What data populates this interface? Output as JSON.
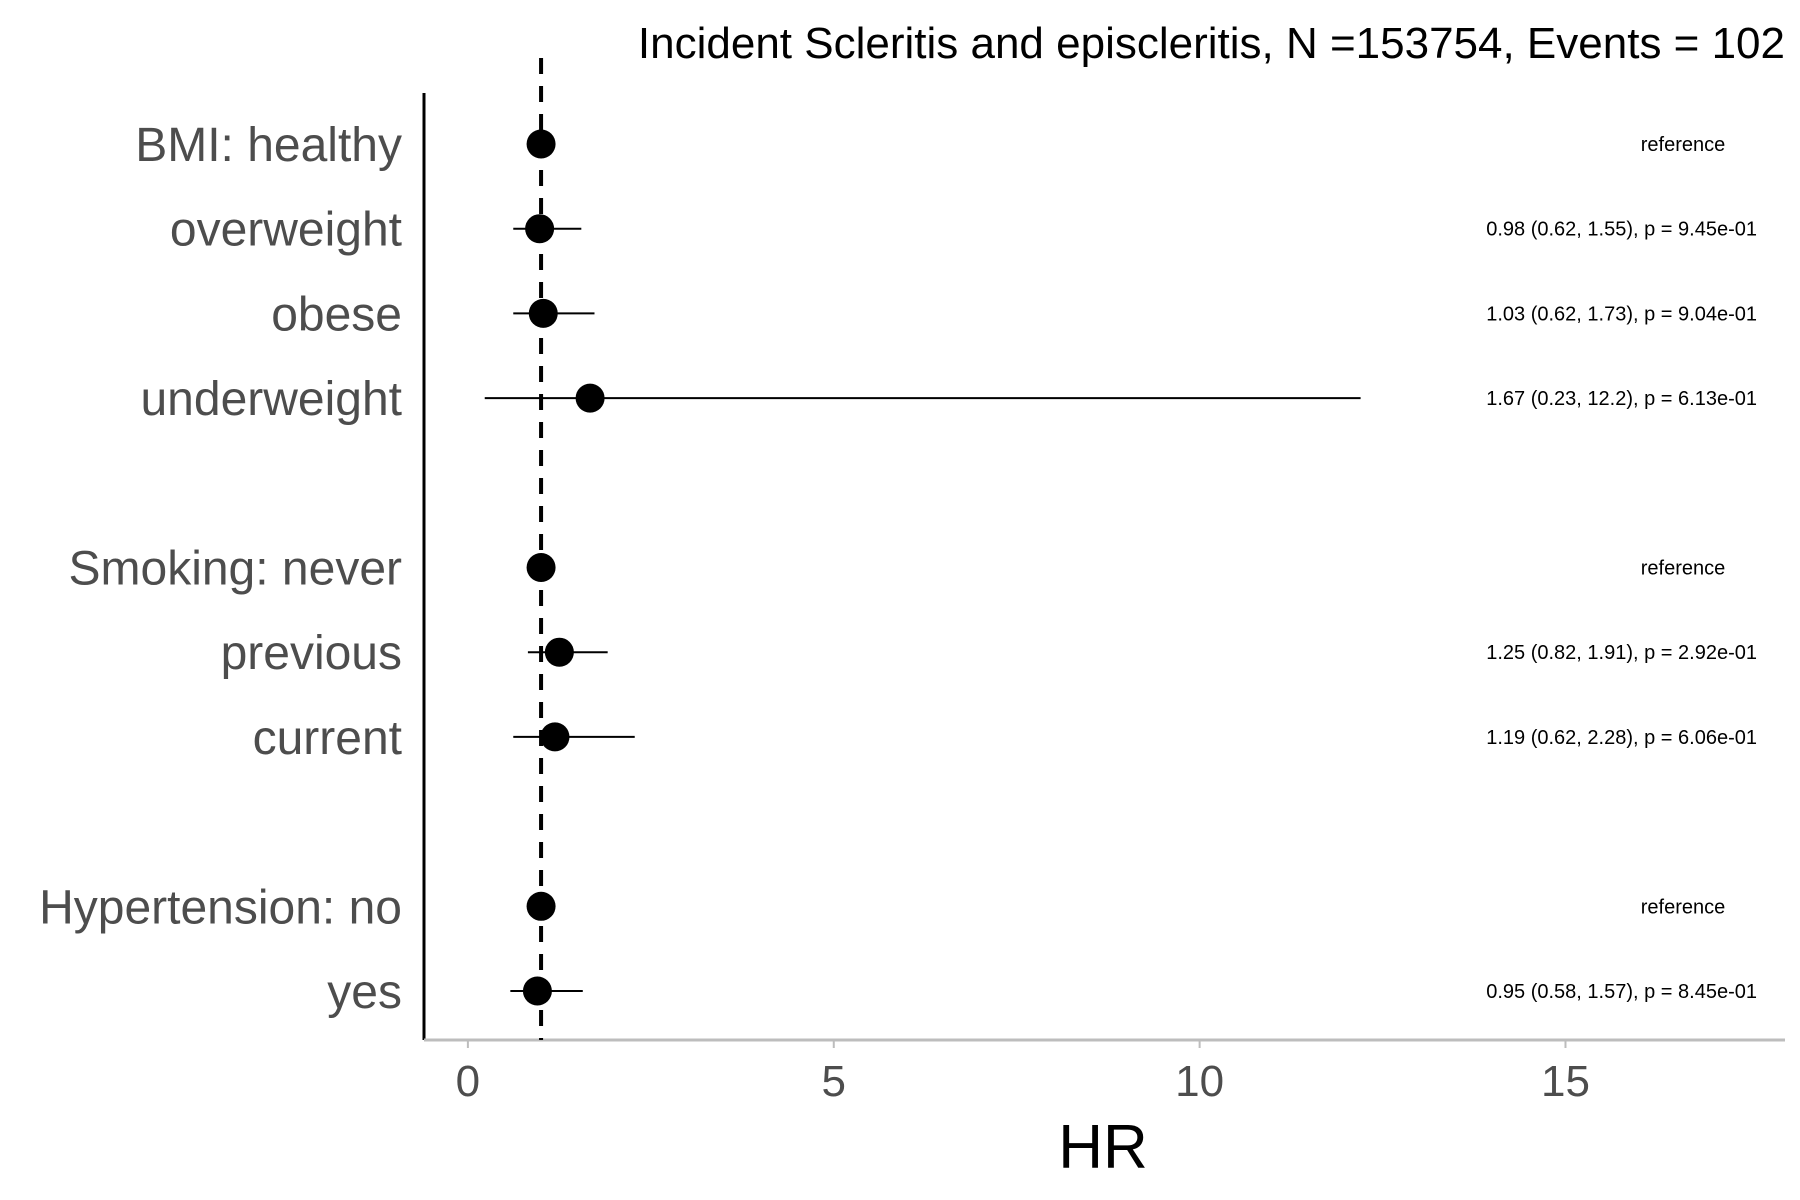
{
  "chart_data": {
    "type": "scatter",
    "subtype": "forest-plot",
    "title": "Incident Scleritis and episcleritis, N =153754, Events = 102",
    "xlabel": "HR",
    "ylabel": "",
    "xlim": [
      -0.6,
      18.0
    ],
    "xticks": [
      0,
      5,
      10,
      15
    ],
    "xtick_labels": [
      "0",
      "5",
      "10",
      "15"
    ],
    "reference_line": 1,
    "reference_line_style": "dashed",
    "grid": false,
    "legend": "none",
    "point_color": "#000000",
    "rows": [
      {
        "label": "BMI: healthy",
        "hr": 1.0,
        "lower": null,
        "upper": null,
        "annotation": "reference"
      },
      {
        "label": "overweight",
        "hr": 0.98,
        "lower": 0.62,
        "upper": 1.55,
        "annotation": "0.98 (0.62, 1.55), p = 9.45e-01"
      },
      {
        "label": "obese",
        "hr": 1.03,
        "lower": 0.62,
        "upper": 1.73,
        "annotation": "1.03 (0.62, 1.73), p = 9.04e-01"
      },
      {
        "label": "underweight",
        "hr": 1.67,
        "lower": 0.23,
        "upper": 12.2,
        "annotation": "1.67 (0.23, 12.2), p = 6.13e-01"
      },
      {
        "label": "",
        "hr": null,
        "lower": null,
        "upper": null,
        "annotation": ""
      },
      {
        "label": "Smoking: never",
        "hr": 1.0,
        "lower": null,
        "upper": null,
        "annotation": "reference"
      },
      {
        "label": "previous",
        "hr": 1.25,
        "lower": 0.82,
        "upper": 1.91,
        "annotation": "1.25 (0.82, 1.91), p = 2.92e-01"
      },
      {
        "label": "current",
        "hr": 1.19,
        "lower": 0.62,
        "upper": 2.28,
        "annotation": "1.19 (0.62, 2.28), p = 6.06e-01"
      },
      {
        "label": "",
        "hr": null,
        "lower": null,
        "upper": null,
        "annotation": ""
      },
      {
        "label": "Hypertension: no",
        "hr": 1.0,
        "lower": null,
        "upper": null,
        "annotation": "reference"
      },
      {
        "label": "yes",
        "hr": 0.95,
        "lower": 0.58,
        "upper": 1.57,
        "annotation": "0.95 (0.58, 1.57), p = 8.45e-01"
      }
    ]
  }
}
